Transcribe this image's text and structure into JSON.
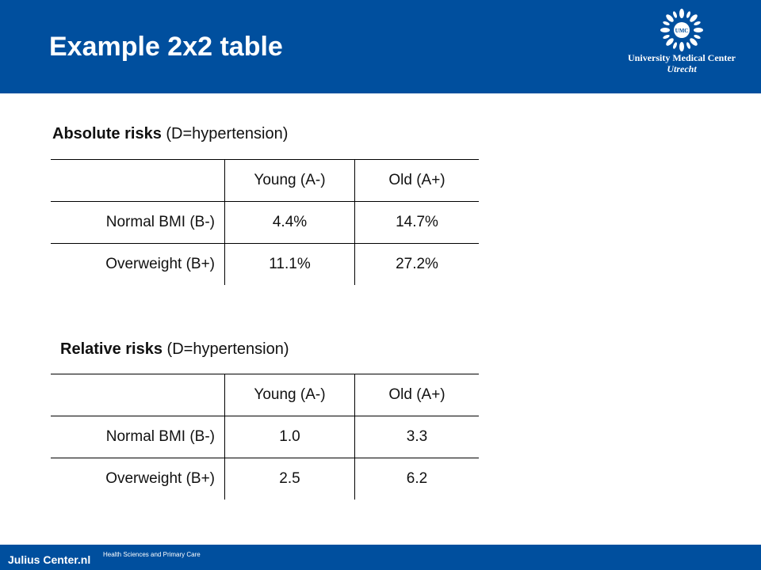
{
  "header": {
    "title": "Example 2x2 table",
    "logo": {
      "icon": "umc-sun-logo-icon",
      "monogram": "UMC",
      "line1": "University Medical Center",
      "line2": "Utrecht"
    },
    "background": "#004f9e"
  },
  "absolute": {
    "title_strong": "Absolute risks",
    "title_rest": " (D=hypertension)",
    "columns": [
      "",
      "Young (A-)",
      "Old (A+)"
    ],
    "rows": [
      {
        "label": "Normal BMI (B-)",
        "values": [
          "4.4%",
          "14.7%"
        ]
      },
      {
        "label": "Overweight (B+)",
        "values": [
          "11.1%",
          "27.2%"
        ]
      }
    ]
  },
  "relative": {
    "title_strong": "Relative risks",
    "title_rest": " (D=hypertension)",
    "columns": [
      "",
      "Young (A-)",
      "Old (A+)"
    ],
    "rows": [
      {
        "label": "Normal BMI (B-)",
        "values": [
          "1.0",
          "3.3"
        ]
      },
      {
        "label": "Overweight (B+)",
        "values": [
          "2.5",
          "6.2"
        ]
      }
    ]
  },
  "footer": {
    "brand": "Julius Center.nl",
    "subtitle": "Health Sciences and Primary Care",
    "background": "#004f9e"
  }
}
